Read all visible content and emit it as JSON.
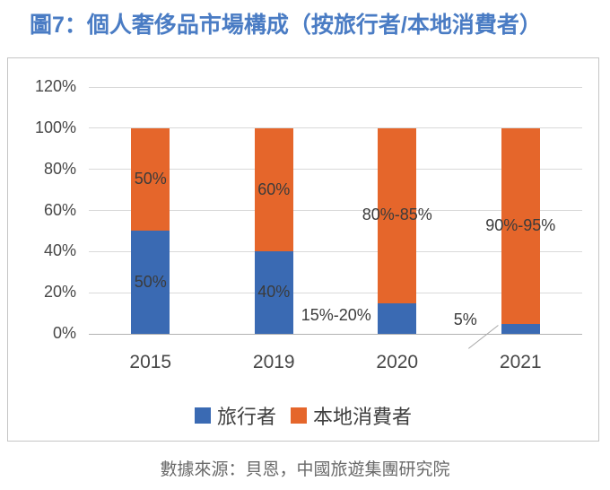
{
  "title": "圖7：個人奢侈品市場構成（按旅行者/本地消費者）",
  "source": "數據來源：貝恩，中國旅遊集團研究院",
  "colors": {
    "title_blue": "#4a7cc4",
    "traveler_blue": "#3a6ab3",
    "local_orange": "#e5662b",
    "gridline": "#d9d9d9",
    "axis_line": "#b3b3b3",
    "frame_border": "#c5c5c5",
    "axis_text": "#474747",
    "data_label_text": "#3b3b3b",
    "legend_text": "#3f3f3f",
    "source_text": "#6a6a6a",
    "callout_line": "#a8a8a8"
  },
  "chart_data": {
    "type": "bar",
    "subtype": "stacked-100-percent",
    "categories": [
      "2015",
      "2019",
      "2020",
      "2021"
    ],
    "series": [
      {
        "key": "travelers",
        "name": "旅行者",
        "color_key": "traveler_blue",
        "drawn_values": [
          50,
          40,
          15,
          5
        ],
        "labels": [
          "50%",
          "40%",
          "15%-20%",
          "5%"
        ],
        "label_placements": [
          "inside",
          "inside",
          "outside-left",
          "callout-left"
        ]
      },
      {
        "key": "locals",
        "name": "本地消費者",
        "color_key": "local_orange",
        "drawn_values": [
          50,
          60,
          85,
          95
        ],
        "labels": [
          "50%",
          "60%",
          "80%-85%",
          "90%-95%"
        ],
        "label_placements": [
          "inside",
          "inside",
          "inside",
          "inside"
        ]
      }
    ],
    "y_axis": {
      "tick_labels": [
        "0%",
        "20%",
        "40%",
        "60%",
        "80%",
        "100%",
        "120%"
      ],
      "tick_values": [
        0,
        20,
        40,
        60,
        80,
        100,
        120
      ],
      "min": 0,
      "max": 120
    },
    "grid": true,
    "legend_position": "bottom"
  }
}
